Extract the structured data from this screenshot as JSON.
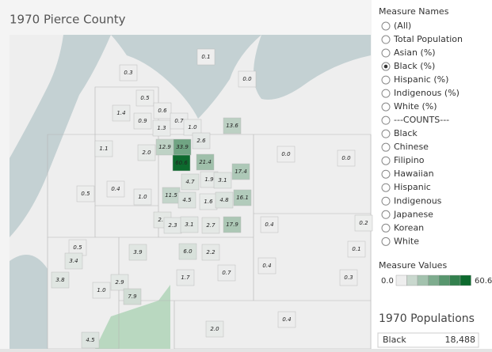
{
  "title": "1970 Pierce County",
  "map": {
    "labels": [
      "0.3",
      "0.1",
      "0.0",
      "0.5",
      "1.4",
      "0.6",
      "0.9",
      "1.3",
      "0.7",
      "1.0",
      "13.6",
      "2.6",
      "1.1",
      "2.0",
      "12.9",
      "33.9",
      "0.0",
      "0.0",
      "60.6",
      "21.4",
      "17.4",
      "4.7",
      "1.9",
      "3.1",
      "0.5",
      "0.4",
      "1.0",
      "11.5",
      "4.5",
      "1.6",
      "4.8",
      "16.1",
      "2.7",
      "2.3",
      "3.1",
      "2.7",
      "17.9",
      "0.4",
      "0.2",
      "0.5",
      "3.4",
      "3.9",
      "6.0",
      "2.2",
      "0.1",
      "0.4",
      "3.8",
      "0.7",
      "1.7",
      "2.9",
      "0.3",
      "1.0",
      "7.9",
      "0.4",
      "2.0",
      "4.5"
    ]
  },
  "filter": {
    "title": "Measure Names",
    "selected": 3,
    "options": [
      "(All)",
      "Total Population",
      "Asian (%)",
      "Black (%)",
      "Hispanic (%)",
      "Indigenous (%)",
      "White (%)",
      "---COUNTS---",
      "Black",
      "Chinese",
      "Filipino",
      "Hawaiian",
      "Hispanic",
      "Indigenous",
      "Japanese",
      "Korean",
      "White"
    ]
  },
  "legend": {
    "title": "Measure Values",
    "min": "0.0",
    "max": "60.6"
  },
  "table": {
    "title": "1970 Populations",
    "rows": [
      [
        "Black",
        "18,488"
      ]
    ]
  }
}
